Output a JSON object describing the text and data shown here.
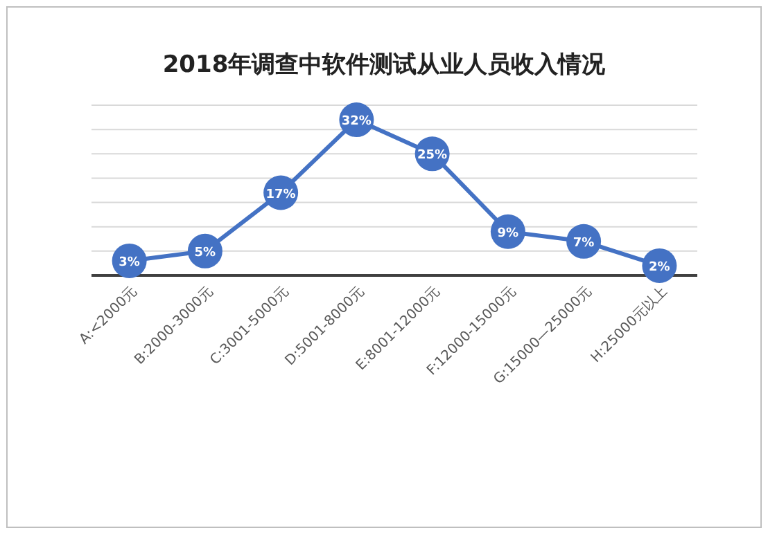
{
  "chart_data": {
    "type": "line",
    "title": "2018年调查中软件测试从业人员收入情况",
    "categories": [
      "A:<2000元",
      "B:2000-3000元",
      "C:3001-5000元",
      "D:5001-8000元",
      "E:8001-12000元",
      "F:12000-15000元",
      "G:15000—25000元",
      "H:25000元以上"
    ],
    "values": [
      3,
      5,
      17,
      32,
      25,
      9,
      7,
      2
    ],
    "color": "#4472c4",
    "ylim": [
      0,
      35
    ],
    "yticks": [
      {
        "value": 0,
        "label": null
      },
      {
        "value": 5,
        "label": null
      },
      {
        "value": 10,
        "label": null
      },
      {
        "value": 15,
        "label": null
      },
      {
        "value": 20,
        "label": null
      },
      {
        "value": 25,
        "label": null
      },
      {
        "value": 30,
        "label": null
      },
      {
        "value": 35,
        "label": null
      }
    ],
    "value_labels": [
      "3%",
      "5%",
      "17%",
      "32%",
      "25%",
      "9%",
      "7%",
      "2%"
    ],
    "grid": "y",
    "tick_labels": "x",
    "marker": "circle",
    "line_style": "solid"
  }
}
